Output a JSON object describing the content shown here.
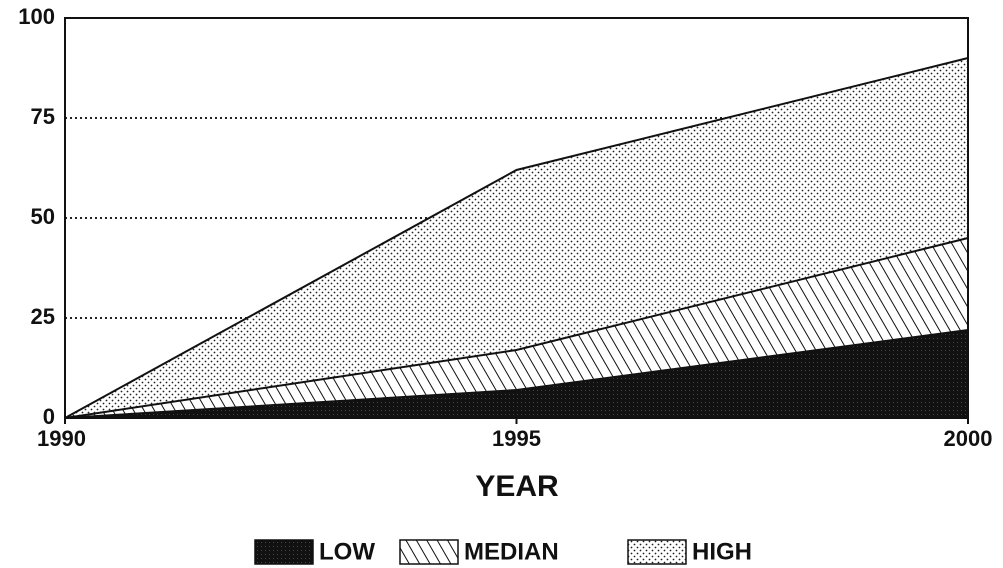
{
  "chart_data": {
    "type": "area",
    "x_label": "YEAR",
    "x": [
      1990,
      1995,
      2000
    ],
    "series": [
      {
        "name": "LOW",
        "color": "#111111",
        "pattern": "solid",
        "values": [
          0,
          7,
          22
        ]
      },
      {
        "name": "MEDIAN",
        "color": "#111111",
        "pattern": "hatch",
        "values": [
          0,
          17,
          45
        ]
      },
      {
        "name": "HIGH",
        "color": "#111111",
        "pattern": "dots",
        "values": [
          0,
          62,
          90
        ]
      }
    ],
    "xlim": [
      1990,
      2000
    ],
    "xticks": [
      1990,
      1995,
      2000
    ],
    "ylim": [
      0,
      100
    ],
    "yticks": [
      0,
      25,
      50,
      75,
      100
    ],
    "grid": true,
    "legend": "bottom"
  }
}
